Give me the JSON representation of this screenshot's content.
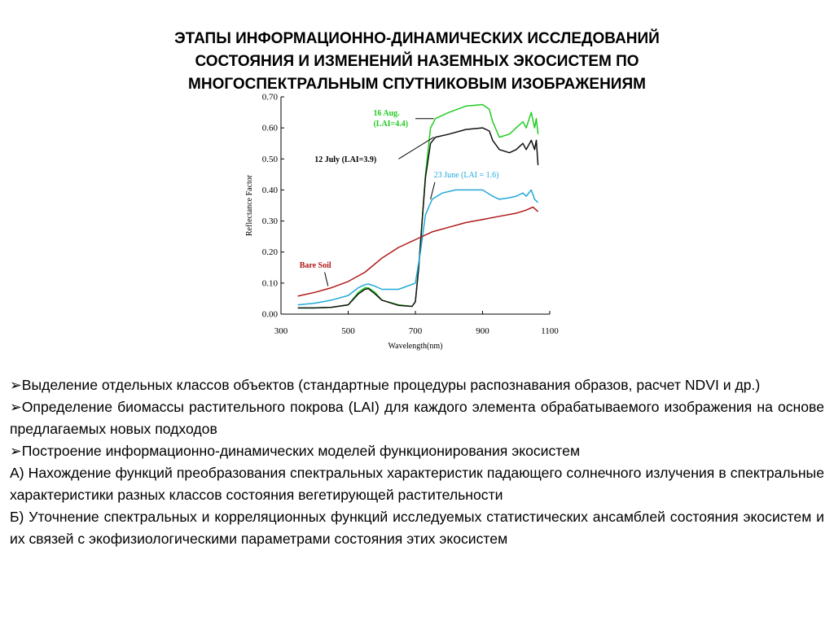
{
  "title_lines": [
    "ЭТАПЫ ИНФОРМАЦИОННО-ДИНАМИЧЕСКИХ ИССЛЕДОВАНИЙ",
    "СОСТОЯНИЯ И ИЗМЕНЕНИЙ НАЗЕМНЫХ ЭКОСИСТЕМ ПО",
    "МНОГОСПЕКТРАЛЬНЫМ СПУТНИКОВЫМ ИЗОБРАЖЕНИЯМ"
  ],
  "chart_data": {
    "type": "line",
    "title": "",
    "xlabel": "Wavelength(nm)",
    "ylabel": "Reflectance Factor",
    "xlim": [
      300,
      1100
    ],
    "ylim": [
      0,
      0.7
    ],
    "xticks": [
      "300",
      "500",
      "700",
      "900",
      "1100"
    ],
    "yticks": [
      "0.00",
      "0.10",
      "0.20",
      "0.30",
      "0.40",
      "0.50",
      "0.60",
      "0.70"
    ],
    "grid": false,
    "series": [
      {
        "name": "16 Aug. (LAI=4.4)",
        "label_lines": [
          "16 Aug.",
          "(LAI=4.4)"
        ],
        "color": "#22cc22",
        "x": [
          350,
          400,
          450,
          500,
          530,
          550,
          560,
          580,
          600,
          650,
          690,
          700,
          710,
          720,
          730,
          745,
          760,
          800,
          850,
          900,
          920,
          930,
          950,
          980,
          1000,
          1020,
          1030,
          1045,
          1055,
          1060,
          1065
        ],
        "y": [
          0.02,
          0.02,
          0.022,
          0.03,
          0.07,
          0.085,
          0.085,
          0.07,
          0.045,
          0.03,
          0.025,
          0.04,
          0.15,
          0.3,
          0.45,
          0.6,
          0.63,
          0.65,
          0.67,
          0.675,
          0.66,
          0.62,
          0.57,
          0.58,
          0.6,
          0.62,
          0.6,
          0.65,
          0.6,
          0.63,
          0.58
        ]
      },
      {
        "name": "12 July (LAI=3.9)",
        "label_lines": [
          "12 July (LAI=3.9)"
        ],
        "color": "#111111",
        "x": [
          350,
          400,
          450,
          500,
          530,
          550,
          560,
          580,
          600,
          650,
          690,
          700,
          710,
          720,
          730,
          745,
          760,
          800,
          850,
          900,
          920,
          930,
          950,
          980,
          1000,
          1020,
          1030,
          1045,
          1055,
          1060,
          1065
        ],
        "y": [
          0.02,
          0.02,
          0.022,
          0.03,
          0.065,
          0.08,
          0.082,
          0.065,
          0.045,
          0.028,
          0.025,
          0.04,
          0.15,
          0.3,
          0.44,
          0.55,
          0.57,
          0.58,
          0.595,
          0.6,
          0.59,
          0.56,
          0.53,
          0.52,
          0.53,
          0.55,
          0.53,
          0.56,
          0.53,
          0.56,
          0.48
        ]
      },
      {
        "name": "23 June (LAI = 1.6)",
        "label_lines": [
          "23 June (LAI = 1.6)"
        ],
        "color": "#22a8d8",
        "x": [
          350,
          400,
          450,
          500,
          530,
          550,
          560,
          580,
          600,
          650,
          700,
          715,
          730,
          750,
          780,
          820,
          860,
          900,
          930,
          950,
          980,
          1000,
          1020,
          1030,
          1045,
          1055,
          1065
        ],
        "y": [
          0.03,
          0.035,
          0.045,
          0.06,
          0.085,
          0.095,
          0.097,
          0.09,
          0.08,
          0.08,
          0.1,
          0.2,
          0.32,
          0.37,
          0.39,
          0.4,
          0.4,
          0.4,
          0.38,
          0.37,
          0.375,
          0.38,
          0.39,
          0.38,
          0.4,
          0.37,
          0.36
        ]
      },
      {
        "name": "Bare Soil",
        "label_lines": [
          "Bare Soil"
        ],
        "color": "#b01818",
        "x": [
          350,
          400,
          450,
          500,
          550,
          600,
          650,
          700,
          750,
          800,
          850,
          900,
          950,
          1000,
          1030,
          1050,
          1065
        ],
        "y": [
          0.058,
          0.07,
          0.085,
          0.105,
          0.135,
          0.18,
          0.215,
          0.24,
          0.265,
          0.28,
          0.295,
          0.305,
          0.315,
          0.325,
          0.335,
          0.345,
          0.33
        ]
      }
    ]
  },
  "body": {
    "bullet_glyph": "➢",
    "paragraphs": [
      {
        "bullet": true,
        "text": "Выделение отдельных классов объектов (стандартные процедуры распознавания образов, расчет NDVI и др.)"
      },
      {
        "bullet": true,
        "text": "Определение биомассы растительного покрова (LAI) для каждого элемента обрабатываемого изображения на основе предлагаемых новых подходов"
      },
      {
        "bullet": true,
        "text": "Построение информационно-динамических моделей функционирования экосистем"
      },
      {
        "bullet": false,
        "text": "А) Нахождение функций преобразования спектральных характеристик падающего солнечного излучения в спектральные характеристики разных классов состояния вегетирующей растительности"
      },
      {
        "bullet": false,
        "text": "Б) Уточнение спектральных и корреляционных функций исследуемых статистических ансамблей состояния экосистем и их связей с экофизиологическими параметрами состояния этих экосистем"
      }
    ]
  }
}
